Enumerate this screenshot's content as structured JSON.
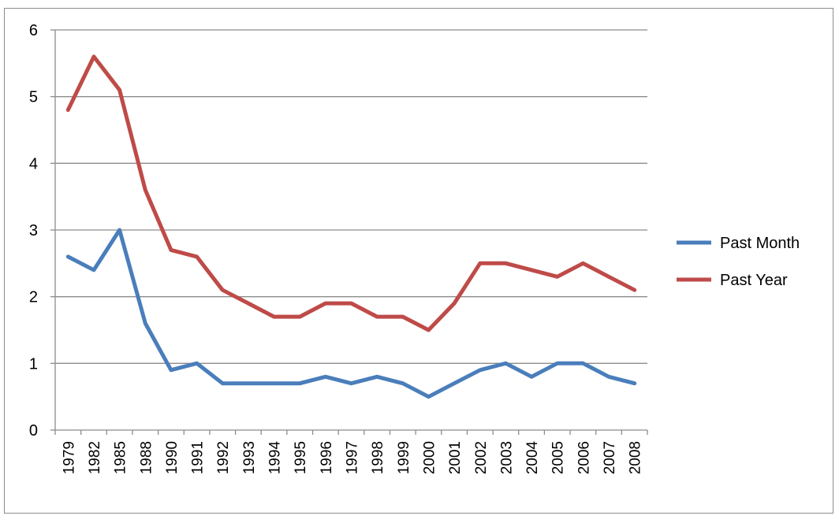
{
  "chart_data": {
    "type": "line",
    "title": "",
    "xlabel": "",
    "ylabel": "",
    "ylim": [
      0,
      6
    ],
    "yticks": [
      0,
      1,
      2,
      3,
      4,
      5,
      6
    ],
    "grid": true,
    "legend_position": "right",
    "categories": [
      "1979",
      "1982",
      "1985",
      "1988",
      "1990",
      "1991",
      "1992",
      "1993",
      "1994",
      "1995",
      "1996",
      "1997",
      "1998",
      "1999",
      "2000",
      "2001",
      "2002",
      "2003",
      "2004",
      "2005",
      "2006",
      "2007",
      "2008"
    ],
    "series": [
      {
        "name": "Past Month",
        "color": "#4a7ebb",
        "values": [
          2.6,
          2.4,
          3.0,
          1.6,
          0.9,
          1.0,
          0.7,
          0.7,
          0.7,
          0.7,
          0.8,
          0.7,
          0.8,
          0.7,
          0.5,
          0.7,
          0.9,
          1.0,
          0.8,
          1.0,
          1.0,
          0.8,
          0.7
        ]
      },
      {
        "name": "Past Year",
        "color": "#be4b48",
        "values": [
          4.8,
          5.6,
          5.1,
          3.6,
          2.7,
          2.6,
          2.1,
          1.9,
          1.7,
          1.7,
          1.9,
          1.9,
          1.7,
          1.7,
          1.5,
          1.9,
          2.5,
          2.5,
          2.4,
          2.3,
          2.5,
          2.3,
          2.1
        ]
      }
    ]
  }
}
